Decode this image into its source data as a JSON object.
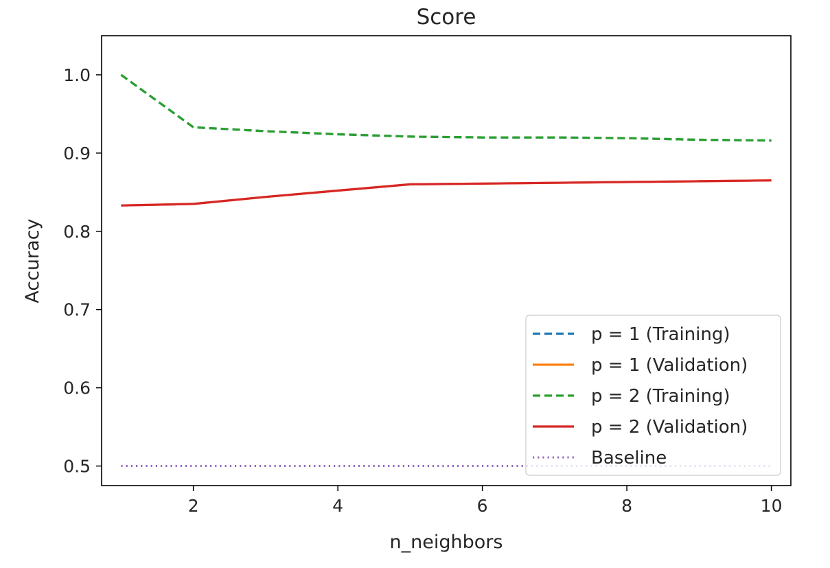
{
  "chart_data": {
    "type": "line",
    "title": "Score",
    "xlabel": "n_neighbors",
    "ylabel": "Accuracy",
    "xlim": [
      0.73,
      10.27
    ],
    "ylim": [
      0.475,
      1.05
    ],
    "xticks": [
      "2",
      "4",
      "6",
      "8",
      "10"
    ],
    "yticks": [
      "0.5",
      "0.6",
      "0.7",
      "0.8",
      "0.9",
      "1.0"
    ],
    "grid": false,
    "legend_position": "lower-right",
    "x": [
      1,
      2,
      3,
      4,
      5,
      6,
      7,
      8,
      9,
      10
    ],
    "series": [
      {
        "name": "p = 1 (Training)",
        "color": "#1f77b4",
        "style": "dashed",
        "values": [
          1.0,
          0.933,
          0.928,
          0.924,
          0.921,
          0.92,
          0.92,
          0.919,
          0.917,
          0.916
        ]
      },
      {
        "name": "p = 1 (Validation)",
        "color": "#ff7f0e",
        "style": "solid",
        "values": [
          0.833,
          0.835,
          0.844,
          0.852,
          0.86,
          0.861,
          0.862,
          0.863,
          0.864,
          0.865
        ]
      },
      {
        "name": "p = 2 (Training)",
        "color": "#2ca02c",
        "style": "dashed",
        "values": [
          1.0,
          0.933,
          0.928,
          0.924,
          0.921,
          0.92,
          0.92,
          0.919,
          0.917,
          0.916
        ]
      },
      {
        "name": "p = 2 (Validation)",
        "color": "#d62728",
        "style": "solid",
        "values": [
          0.833,
          0.835,
          0.844,
          0.852,
          0.86,
          0.861,
          0.862,
          0.863,
          0.864,
          0.865
        ]
      },
      {
        "name": "Baseline",
        "color": "#9467bd",
        "style": "dotted",
        "values": [
          0.5,
          0.5,
          0.5,
          0.5,
          0.5,
          0.5,
          0.5,
          0.5,
          0.5,
          0.5
        ]
      }
    ]
  }
}
